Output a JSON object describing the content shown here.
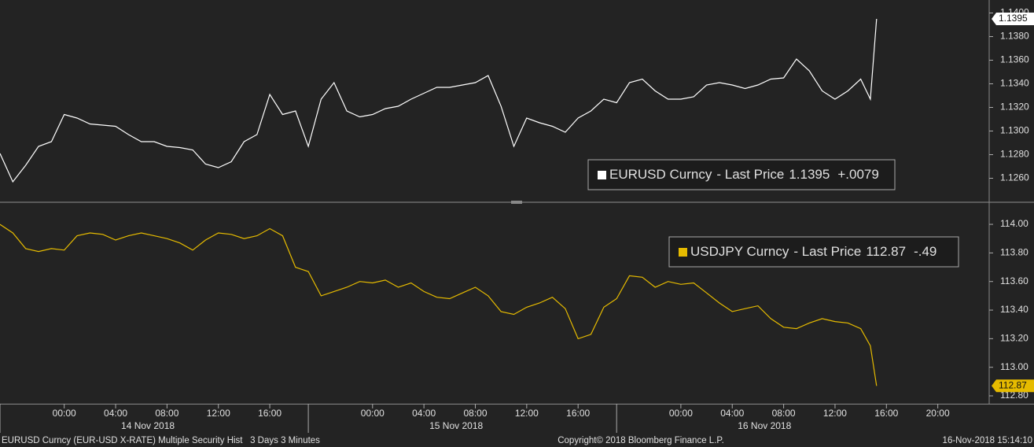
{
  "chart_data": [
    {
      "type": "line",
      "x": [
        "13 Nov 2018 19:00",
        "13 Nov 2018 20:00",
        "13 Nov 2018 21:00",
        "13 Nov 2018 22:00",
        "13 Nov 2018 23:00",
        "14 Nov 2018 00:00",
        "14 Nov 2018 01:00",
        "14 Nov 2018 02:00",
        "14 Nov 2018 03:00",
        "14 Nov 2018 04:00",
        "14 Nov 2018 05:00",
        "14 Nov 2018 06:00",
        "14 Nov 2018 07:00",
        "14 Nov 2018 08:00",
        "14 Nov 2018 09:00",
        "14 Nov 2018 10:00",
        "14 Nov 2018 11:00",
        "14 Nov 2018 12:00",
        "14 Nov 2018 13:00",
        "14 Nov 2018 14:00",
        "14 Nov 2018 15:00",
        "14 Nov 2018 16:00",
        "14 Nov 2018 17:00",
        "14 Nov 2018 18:00",
        "14 Nov 2018 19:00",
        "14 Nov 2018 20:00",
        "14 Nov 2018 21:00",
        "14 Nov 2018 22:00",
        "14 Nov 2018 23:00",
        "15 Nov 2018 00:00",
        "15 Nov 2018 01:00",
        "15 Nov 2018 02:00",
        "15 Nov 2018 03:00",
        "15 Nov 2018 04:00",
        "15 Nov 2018 05:00",
        "15 Nov 2018 06:00",
        "15 Nov 2018 07:00",
        "15 Nov 2018 08:00",
        "15 Nov 2018 09:00",
        "15 Nov 2018 10:00",
        "15 Nov 2018 11:00",
        "15 Nov 2018 12:00",
        "15 Nov 2018 13:00",
        "15 Nov 2018 14:00",
        "15 Nov 2018 15:00",
        "15 Nov 2018 16:00",
        "15 Nov 2018 17:00",
        "15 Nov 2018 18:00",
        "15 Nov 2018 19:00",
        "15 Nov 2018 20:00",
        "15 Nov 2018 21:00",
        "15 Nov 2018 22:00",
        "15 Nov 2018 23:00",
        "16 Nov 2018 00:00",
        "16 Nov 2018 01:00",
        "16 Nov 2018 02:00",
        "16 Nov 2018 03:00",
        "16 Nov 2018 04:00",
        "16 Nov 2018 05:00",
        "16 Nov 2018 06:00",
        "16 Nov 2018 07:00",
        "16 Nov 2018 08:00",
        "16 Nov 2018 09:00",
        "16 Nov 2018 10:00",
        "16 Nov 2018 11:00",
        "16 Nov 2018 12:00",
        "16 Nov 2018 13:00",
        "16 Nov 2018 14:00",
        "16 Nov 2018 14:45",
        "16 Nov 2018 15:14"
      ],
      "series": [
        {
          "name": "EURUSD Curncy",
          "color": "#ffffff",
          "values": [
            1.1281,
            1.1257,
            1.1271,
            1.1287,
            1.1291,
            1.1314,
            1.1311,
            1.1306,
            1.1305,
            1.1304,
            1.1297,
            1.1291,
            1.1291,
            1.1287,
            1.1286,
            1.1284,
            1.1272,
            1.1269,
            1.1274,
            1.1291,
            1.1297,
            1.1331,
            1.1314,
            1.1317,
            1.1287,
            1.1327,
            1.1341,
            1.1317,
            1.1312,
            1.1314,
            1.1319,
            1.1321,
            1.1327,
            1.1332,
            1.1337,
            1.1337,
            1.1339,
            1.1341,
            1.1347,
            1.1321,
            1.1287,
            1.1311,
            1.1307,
            1.1304,
            1.1299,
            1.1311,
            1.1317,
            1.1327,
            1.1324,
            1.1341,
            1.1344,
            1.1334,
            1.1327,
            1.1327,
            1.1329,
            1.1339,
            1.1341,
            1.1339,
            1.1336,
            1.1339,
            1.1344,
            1.1345,
            1.1361,
            1.1351,
            1.1334,
            1.1327,
            1.1334,
            1.1344,
            1.1327,
            1.1395
          ]
        }
      ],
      "price_label": "- Last Price",
      "last_price": {
        "value": 1.1395,
        "label": "1.1395"
      },
      "change": {
        "value": 0.0079,
        "label": "+.0079"
      },
      "xlim": [
        "13 Nov 2018 19:00",
        "17 Nov 2018 00:00"
      ],
      "ylim": [
        1.1241,
        1.1411
      ],
      "yticks": [
        {
          "value": 1.126,
          "label": "1.1260"
        },
        {
          "value": 1.128,
          "label": "1.1280"
        },
        {
          "value": 1.13,
          "label": "1.1300"
        },
        {
          "value": 1.132,
          "label": "1.1320"
        },
        {
          "value": 1.134,
          "label": "1.1340"
        },
        {
          "value": 1.136,
          "label": "1.1360"
        },
        {
          "value": 1.138,
          "label": "1.1380"
        },
        {
          "value": 1.14,
          "label": "1.1400"
        }
      ],
      "grid": false
    },
    {
      "type": "line",
      "x": [
        "13 Nov 2018 19:00",
        "13 Nov 2018 20:00",
        "13 Nov 2018 21:00",
        "13 Nov 2018 22:00",
        "13 Nov 2018 23:00",
        "14 Nov 2018 00:00",
        "14 Nov 2018 01:00",
        "14 Nov 2018 02:00",
        "14 Nov 2018 03:00",
        "14 Nov 2018 04:00",
        "14 Nov 2018 05:00",
        "14 Nov 2018 06:00",
        "14 Nov 2018 07:00",
        "14 Nov 2018 08:00",
        "14 Nov 2018 09:00",
        "14 Nov 2018 10:00",
        "14 Nov 2018 11:00",
        "14 Nov 2018 12:00",
        "14 Nov 2018 13:00",
        "14 Nov 2018 14:00",
        "14 Nov 2018 15:00",
        "14 Nov 2018 16:00",
        "14 Nov 2018 17:00",
        "14 Nov 2018 18:00",
        "14 Nov 2018 19:00",
        "14 Nov 2018 20:00",
        "14 Nov 2018 21:00",
        "14 Nov 2018 22:00",
        "14 Nov 2018 23:00",
        "15 Nov 2018 00:00",
        "15 Nov 2018 01:00",
        "15 Nov 2018 02:00",
        "15 Nov 2018 03:00",
        "15 Nov 2018 04:00",
        "15 Nov 2018 05:00",
        "15 Nov 2018 06:00",
        "15 Nov 2018 07:00",
        "15 Nov 2018 08:00",
        "15 Nov 2018 09:00",
        "15 Nov 2018 10:00",
        "15 Nov 2018 11:00",
        "15 Nov 2018 12:00",
        "15 Nov 2018 13:00",
        "15 Nov 2018 14:00",
        "15 Nov 2018 15:00",
        "15 Nov 2018 16:00",
        "15 Nov 2018 17:00",
        "15 Nov 2018 18:00",
        "15 Nov 2018 19:00",
        "15 Nov 2018 20:00",
        "15 Nov 2018 21:00",
        "15 Nov 2018 22:00",
        "15 Nov 2018 23:00",
        "16 Nov 2018 00:00",
        "16 Nov 2018 01:00",
        "16 Nov 2018 02:00",
        "16 Nov 2018 03:00",
        "16 Nov 2018 04:00",
        "16 Nov 2018 05:00",
        "16 Nov 2018 06:00",
        "16 Nov 2018 07:00",
        "16 Nov 2018 08:00",
        "16 Nov 2018 09:00",
        "16 Nov 2018 10:00",
        "16 Nov 2018 11:00",
        "16 Nov 2018 12:00",
        "16 Nov 2018 13:00",
        "16 Nov 2018 14:00",
        "16 Nov 2018 14:45",
        "16 Nov 2018 15:14"
      ],
      "series": [
        {
          "name": "USDJPY Curncy",
          "color": "#e6bb00",
          "values": [
            114.0,
            113.94,
            113.83,
            113.81,
            113.83,
            113.82,
            113.92,
            113.94,
            113.93,
            113.89,
            113.92,
            113.94,
            113.92,
            113.9,
            113.87,
            113.82,
            113.89,
            113.94,
            113.93,
            113.9,
            113.92,
            113.97,
            113.92,
            113.7,
            113.67,
            113.5,
            113.53,
            113.56,
            113.6,
            113.59,
            113.61,
            113.56,
            113.59,
            113.53,
            113.49,
            113.48,
            113.52,
            113.56,
            113.5,
            113.39,
            113.37,
            113.42,
            113.45,
            113.49,
            113.41,
            113.2,
            113.23,
            113.42,
            113.48,
            113.64,
            113.63,
            113.56,
            113.6,
            113.58,
            113.59,
            113.52,
            113.45,
            113.39,
            113.41,
            113.43,
            113.34,
            113.28,
            113.27,
            113.31,
            113.34,
            113.32,
            113.31,
            113.27,
            113.15,
            112.87
          ]
        }
      ],
      "price_label": "- Last Price",
      "last_price": {
        "value": 112.87,
        "label": "112.87"
      },
      "change": {
        "value": -0.49,
        "label": "-.49"
      },
      "xlim": [
        "13 Nov 2018 19:00",
        "17 Nov 2018 00:00"
      ],
      "ylim": [
        112.745,
        114.138
      ],
      "yticks": [
        {
          "value": 112.8,
          "label": "112.80"
        },
        {
          "value": 113,
          "label": "113.00"
        },
        {
          "value": 113.2,
          "label": "113.20"
        },
        {
          "value": 113.4,
          "label": "113.40"
        },
        {
          "value": 113.6,
          "label": "113.60"
        },
        {
          "value": 113.8,
          "label": "113.80"
        },
        {
          "value": 114,
          "label": "114.00"
        }
      ],
      "xticks": [
        {
          "value": "14 Nov 2018 00:00",
          "label": "00:00"
        },
        {
          "value": "14 Nov 2018 04:00",
          "label": "04:00"
        },
        {
          "value": "14 Nov 2018 08:00",
          "label": "08:00"
        },
        {
          "value": "14 Nov 2018 12:00",
          "label": "12:00"
        },
        {
          "value": "14 Nov 2018 16:00",
          "label": "16:00"
        },
        {
          "value": "15 Nov 2018 00:00",
          "label": "00:00"
        },
        {
          "value": "15 Nov 2018 04:00",
          "label": "04:00"
        },
        {
          "value": "15 Nov 2018 08:00",
          "label": "08:00"
        },
        {
          "value": "15 Nov 2018 12:00",
          "label": "12:00"
        },
        {
          "value": "15 Nov 2018 16:00",
          "label": "16:00"
        },
        {
          "value": "16 Nov 2018 00:00",
          "label": "00:00"
        },
        {
          "value": "16 Nov 2018 04:00",
          "label": "04:00"
        },
        {
          "value": "16 Nov 2018 08:00",
          "label": "08:00"
        },
        {
          "value": "16 Nov 2018 12:00",
          "label": "12:00"
        },
        {
          "value": "16 Nov 2018 16:00",
          "label": "16:00"
        },
        {
          "value": "16 Nov 2018 20:00",
          "label": "20:00"
        }
      ],
      "date_labels": [
        "14 Nov 2018",
        "15 Nov 2018",
        "16 Nov 2018"
      ],
      "grid": false
    }
  ],
  "footer": {
    "left": "EURUSD Curncy (EUR-USD X-RATE) Multiple Security Hist   3 Days 3 Minutes",
    "center": "Copyright© 2018 Bloomberg Finance L.P.",
    "right": "16-Nov-2018 15:14:10"
  }
}
